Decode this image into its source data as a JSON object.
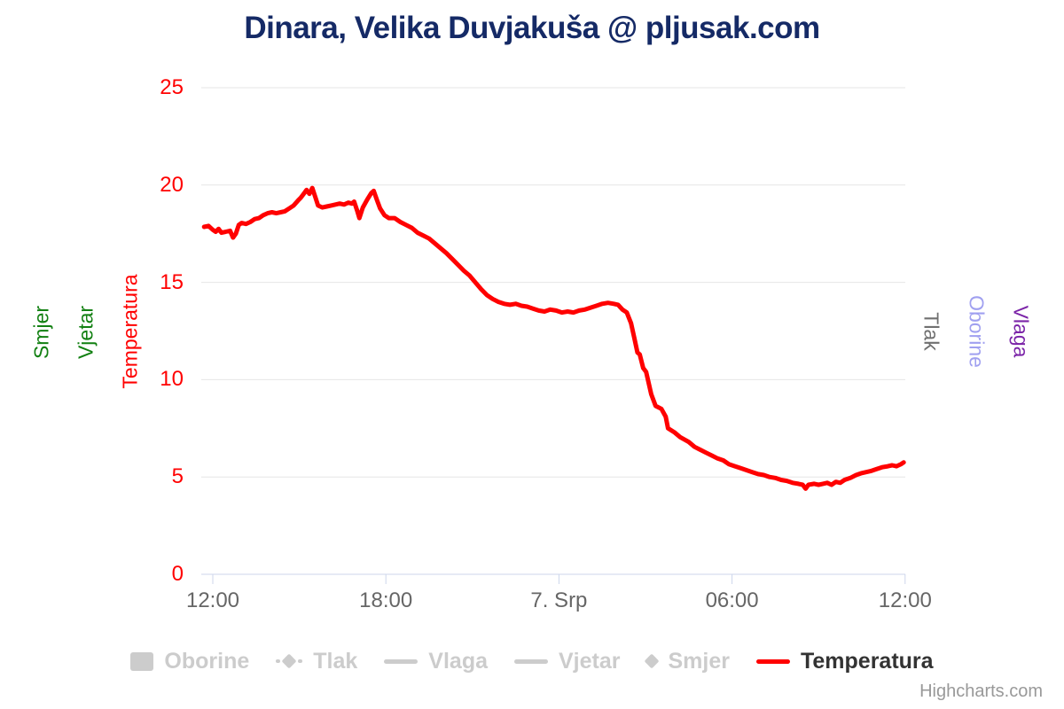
{
  "title": {
    "text": "Dinara, Velika Duvjakuša @ pljusak.com"
  },
  "credits": {
    "label": "Highcharts.com"
  },
  "colors": {
    "title": "#152a66",
    "temperature": "#ff0000",
    "y_labels": "#ff0000",
    "x_labels": "#666666",
    "grid": "#e6e6e6",
    "axis_line": "#ccd6eb",
    "legend_disabled": "#cccccc",
    "legend_active_text": "#333333",
    "credits": "#999999"
  },
  "axes": {
    "left_titles": [
      {
        "label": "Smjer",
        "color": "#128012"
      },
      {
        "label": "Vjetar",
        "color": "#128012"
      },
      {
        "label": "Temperatura",
        "color": "#ff0000"
      }
    ],
    "right_titles": [
      {
        "label": "Tlak",
        "color": "#707070"
      },
      {
        "label": "Oborine",
        "color": "#a0a0f0"
      },
      {
        "label": "Vlaga",
        "color": "#7b24a8"
      }
    ]
  },
  "legend": {
    "items": [
      {
        "label": "Oborine",
        "marker": "square",
        "active": false
      },
      {
        "label": "Tlak",
        "marker": "dash-diamond",
        "active": false
      },
      {
        "label": "Vlaga",
        "marker": "line",
        "active": false
      },
      {
        "label": "Vjetar",
        "marker": "line",
        "active": false
      },
      {
        "label": "Smjer",
        "marker": "diamond",
        "active": false
      },
      {
        "label": "Temperatura",
        "marker": "line",
        "active": true,
        "color": "#ff0000"
      }
    ]
  },
  "chart_data": {
    "type": "line",
    "title": "Dinara, Velika Duvjakuša @ pljusak.com",
    "xlabel": "",
    "ylabel": "Temperatura",
    "x_unit": "hours since 12:00 on 6. Srp",
    "x_tick_hours": [
      0,
      6,
      12,
      18,
      24
    ],
    "x_tick_labels": [
      "12:00",
      "18:00",
      "7. Srp",
      "06:00",
      "12:00"
    ],
    "ylim": [
      0,
      25
    ],
    "y_ticks": [
      0,
      5,
      10,
      15,
      20,
      25
    ],
    "grid": true,
    "legend_position": "bottom",
    "series": [
      {
        "name": "Temperatura",
        "unit": "°C",
        "color": "#ff0000",
        "points": [
          [
            -0.3,
            17.85
          ],
          [
            -0.15,
            17.9
          ],
          [
            0,
            17.7
          ],
          [
            0.1,
            17.6
          ],
          [
            0.2,
            17.75
          ],
          [
            0.3,
            17.55
          ],
          [
            0.45,
            17.6
          ],
          [
            0.6,
            17.65
          ],
          [
            0.7,
            17.3
          ],
          [
            0.8,
            17.5
          ],
          [
            0.9,
            17.95
          ],
          [
            1.0,
            18.05
          ],
          [
            1.15,
            18.0
          ],
          [
            1.3,
            18.1
          ],
          [
            1.45,
            18.25
          ],
          [
            1.6,
            18.3
          ],
          [
            1.75,
            18.45
          ],
          [
            1.9,
            18.55
          ],
          [
            2.05,
            18.6
          ],
          [
            2.2,
            18.55
          ],
          [
            2.35,
            18.6
          ],
          [
            2.5,
            18.65
          ],
          [
            2.65,
            18.8
          ],
          [
            2.8,
            18.95
          ],
          [
            2.95,
            19.2
          ],
          [
            3.05,
            19.35
          ],
          [
            3.15,
            19.55
          ],
          [
            3.25,
            19.75
          ],
          [
            3.35,
            19.55
          ],
          [
            3.45,
            19.85
          ],
          [
            3.55,
            19.4
          ],
          [
            3.65,
            18.95
          ],
          [
            3.8,
            18.85
          ],
          [
            3.95,
            18.9
          ],
          [
            4.1,
            18.95
          ],
          [
            4.25,
            19.0
          ],
          [
            4.4,
            19.05
          ],
          [
            4.55,
            19.0
          ],
          [
            4.7,
            19.1
          ],
          [
            4.82,
            19.05
          ],
          [
            4.9,
            19.15
          ],
          [
            5.0,
            18.7
          ],
          [
            5.08,
            18.3
          ],
          [
            5.2,
            18.85
          ],
          [
            5.35,
            19.25
          ],
          [
            5.5,
            19.6
          ],
          [
            5.58,
            19.7
          ],
          [
            5.7,
            19.2
          ],
          [
            5.8,
            18.8
          ],
          [
            5.95,
            18.45
          ],
          [
            6.1,
            18.3
          ],
          [
            6.3,
            18.3
          ],
          [
            6.5,
            18.1
          ],
          [
            6.7,
            17.95
          ],
          [
            6.9,
            17.8
          ],
          [
            7.1,
            17.55
          ],
          [
            7.3,
            17.4
          ],
          [
            7.5,
            17.25
          ],
          [
            7.7,
            17.0
          ],
          [
            7.9,
            16.75
          ],
          [
            8.1,
            16.5
          ],
          [
            8.3,
            16.2
          ],
          [
            8.5,
            15.9
          ],
          [
            8.7,
            15.6
          ],
          [
            8.9,
            15.35
          ],
          [
            9.1,
            15.0
          ],
          [
            9.3,
            14.65
          ],
          [
            9.5,
            14.35
          ],
          [
            9.7,
            14.15
          ],
          [
            9.9,
            14.0
          ],
          [
            10.1,
            13.9
          ],
          [
            10.3,
            13.85
          ],
          [
            10.5,
            13.9
          ],
          [
            10.7,
            13.8
          ],
          [
            10.9,
            13.75
          ],
          [
            11.1,
            13.65
          ],
          [
            11.3,
            13.55
          ],
          [
            11.5,
            13.5
          ],
          [
            11.7,
            13.6
          ],
          [
            11.9,
            13.55
          ],
          [
            12.1,
            13.45
          ],
          [
            12.3,
            13.5
          ],
          [
            12.5,
            13.45
          ],
          [
            12.7,
            13.55
          ],
          [
            12.9,
            13.6
          ],
          [
            13.1,
            13.7
          ],
          [
            13.3,
            13.8
          ],
          [
            13.5,
            13.9
          ],
          [
            13.7,
            13.95
          ],
          [
            13.9,
            13.9
          ],
          [
            14.05,
            13.85
          ],
          [
            14.2,
            13.6
          ],
          [
            14.35,
            13.45
          ],
          [
            14.5,
            12.9
          ],
          [
            14.62,
            12.1
          ],
          [
            14.72,
            11.4
          ],
          [
            14.8,
            11.3
          ],
          [
            14.92,
            10.6
          ],
          [
            15.02,
            10.4
          ],
          [
            15.2,
            9.25
          ],
          [
            15.35,
            8.65
          ],
          [
            15.55,
            8.5
          ],
          [
            15.7,
            8.1
          ],
          [
            15.78,
            7.5
          ],
          [
            16.0,
            7.3
          ],
          [
            16.2,
            7.05
          ],
          [
            16.5,
            6.8
          ],
          [
            16.7,
            6.55
          ],
          [
            16.9,
            6.4
          ],
          [
            17.1,
            6.25
          ],
          [
            17.3,
            6.1
          ],
          [
            17.5,
            5.95
          ],
          [
            17.7,
            5.85
          ],
          [
            17.9,
            5.65
          ],
          [
            18.1,
            5.55
          ],
          [
            18.3,
            5.45
          ],
          [
            18.5,
            5.35
          ],
          [
            18.7,
            5.25
          ],
          [
            18.9,
            5.15
          ],
          [
            19.1,
            5.1
          ],
          [
            19.3,
            5.0
          ],
          [
            19.5,
            4.95
          ],
          [
            19.7,
            4.85
          ],
          [
            19.9,
            4.8
          ],
          [
            20.1,
            4.7
          ],
          [
            20.3,
            4.65
          ],
          [
            20.45,
            4.6
          ],
          [
            20.55,
            4.4
          ],
          [
            20.65,
            4.6
          ],
          [
            20.85,
            4.65
          ],
          [
            21.0,
            4.6
          ],
          [
            21.15,
            4.65
          ],
          [
            21.3,
            4.7
          ],
          [
            21.45,
            4.6
          ],
          [
            21.6,
            4.75
          ],
          [
            21.75,
            4.7
          ],
          [
            21.9,
            4.85
          ],
          [
            22.1,
            4.95
          ],
          [
            22.3,
            5.1
          ],
          [
            22.5,
            5.2
          ],
          [
            22.65,
            5.25
          ],
          [
            22.8,
            5.3
          ],
          [
            23.0,
            5.4
          ],
          [
            23.2,
            5.5
          ],
          [
            23.4,
            5.55
          ],
          [
            23.55,
            5.6
          ],
          [
            23.7,
            5.55
          ],
          [
            23.85,
            5.65
          ],
          [
            23.95,
            5.75
          ]
        ]
      }
    ]
  }
}
